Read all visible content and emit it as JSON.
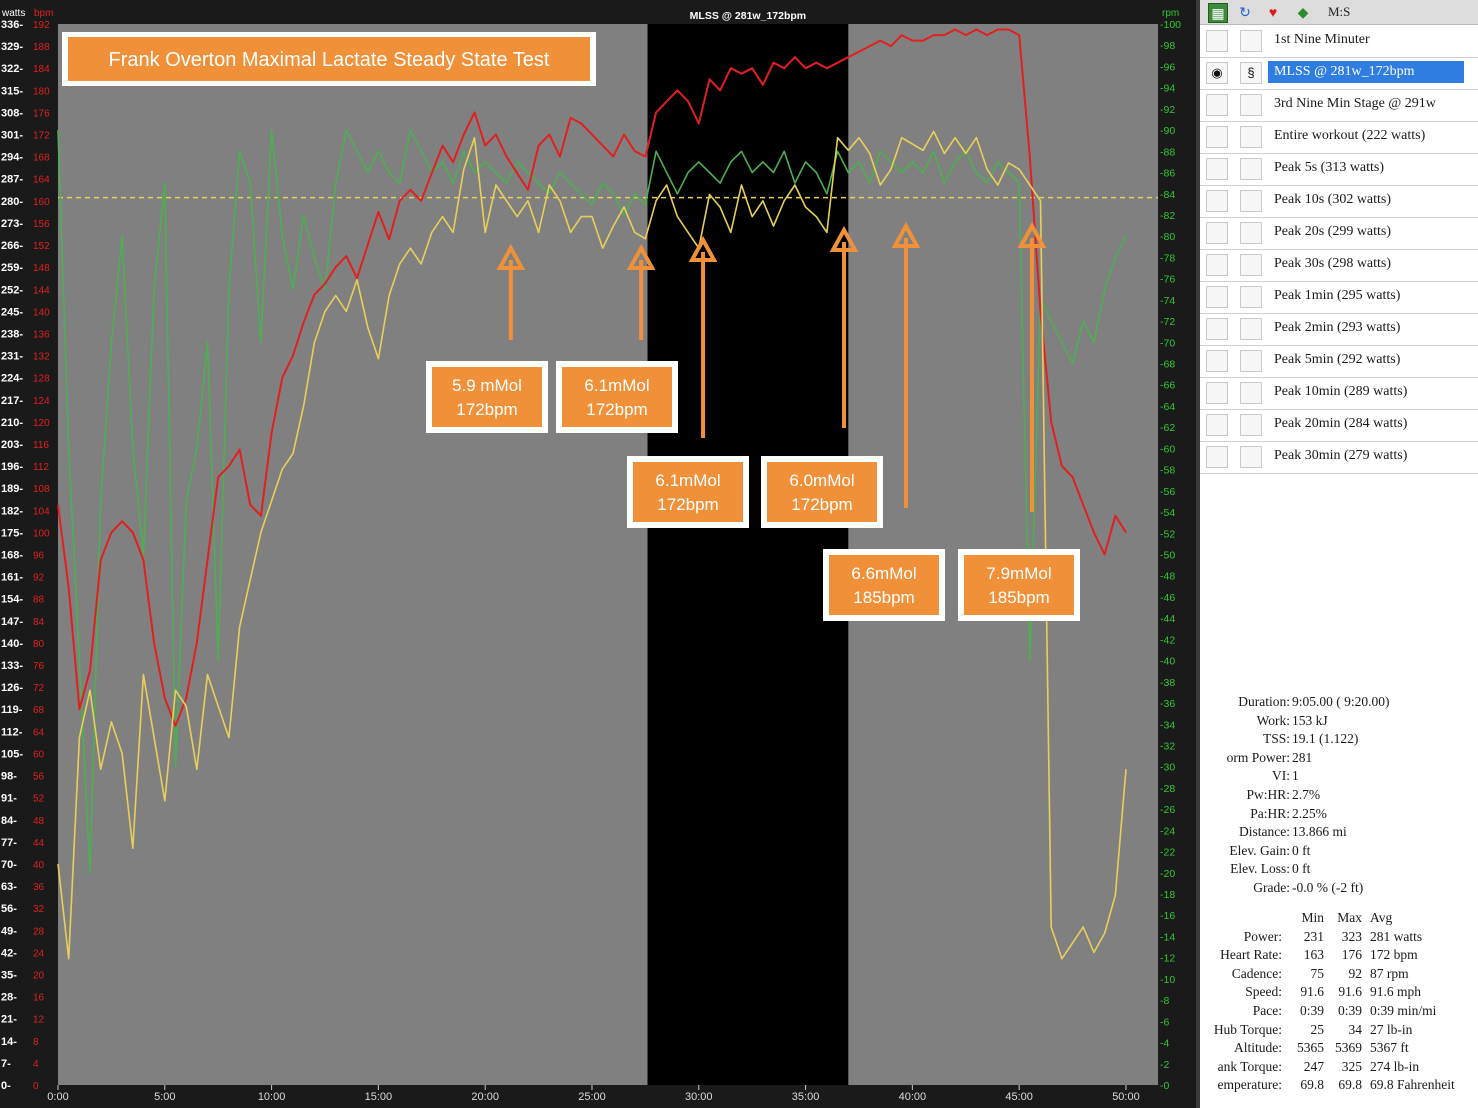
{
  "chart_data": {
    "type": "line",
    "title": "Frank Overton  Maximal Lactate Steady State Test",
    "selection_label": "MLSS @ 281w_172bpm",
    "axes": {
      "watts": {
        "label": "watts",
        "color": "#ffffff",
        "range": [
          0,
          336
        ],
        "ticks": [
          "0-",
          "7-",
          "14-",
          "21-",
          "28-",
          "35-",
          "42-",
          "49-",
          "56-",
          "63-",
          "70-",
          "77-",
          "84-",
          "91-",
          "98-",
          "105-",
          "112-",
          "119-",
          "126-",
          "133-",
          "140-",
          "147-",
          "154-",
          "161-",
          "168-",
          "175-",
          "182-",
          "189-",
          "196-",
          "203-",
          "210-",
          "217-",
          "224-",
          "231-",
          "238-",
          "245-",
          "252-",
          "259-",
          "266-",
          "273-",
          "280-",
          "287-",
          "294-",
          "301-",
          "308-",
          "315-",
          "322-",
          "329-",
          "336-"
        ]
      },
      "bpm": {
        "label": "bpm",
        "color": "#e02020",
        "range": [
          0,
          192
        ],
        "ticks": [
          "0",
          "4",
          "8",
          "12",
          "16",
          "20",
          "24",
          "28",
          "32",
          "36",
          "40",
          "44",
          "48",
          "52",
          "56",
          "60",
          "64",
          "68",
          "72",
          "76",
          "80",
          "84",
          "88",
          "92",
          "96",
          "100",
          "104",
          "108",
          "112",
          "116",
          "120",
          "124",
          "128",
          "132",
          "136",
          "140",
          "144",
          "148",
          "152",
          "156",
          "160",
          "164",
          "168",
          "172",
          "176",
          "180",
          "184",
          "188",
          "192"
        ]
      },
      "rpm": {
        "label": "rpm",
        "color": "#32c832",
        "range": [
          0,
          100
        ],
        "ticks": [
          "-0",
          "-2",
          "-4",
          "-6",
          "-8",
          "-10",
          "-12",
          "-14",
          "-16",
          "-18",
          "-20",
          "-22",
          "-24",
          "-26",
          "-28",
          "-30",
          "-32",
          "-34",
          "-36",
          "-38",
          "-40",
          "-42",
          "-44",
          "-46",
          "-48",
          "-50",
          "-52",
          "-54",
          "-56",
          "-58",
          "-60",
          "-62",
          "-64",
          "-66",
          "-68",
          "-70",
          "-72",
          "-74",
          "-76",
          "-78",
          "-80",
          "-82",
          "-84",
          "-86",
          "-88",
          "-90",
          "-92",
          "-94",
          "-96",
          "-98",
          "-100"
        ]
      },
      "x": {
        "unit": "min",
        "range": [
          0,
          51.5
        ],
        "ticks": [
          "0:00",
          "5:00",
          "10:00",
          "15:00",
          "20:00",
          "25:00",
          "30:00",
          "35:00",
          "40:00",
          "45:00",
          "50:00"
        ]
      }
    },
    "selection_range_min": [
      27.6,
      37.0
    ],
    "reference_line_watts": 281,
    "series": [
      {
        "name": "Power",
        "unit": "watts",
        "color": "#e8cf5a",
        "x": [
          0,
          0.5,
          1,
          1.5,
          2,
          2.5,
          3,
          3.5,
          4,
          4.5,
          5,
          5.5,
          6,
          6.5,
          7,
          7.5,
          8,
          8.5,
          9,
          9.5,
          10,
          10.5,
          11,
          11.5,
          12,
          12.5,
          13,
          13.5,
          14,
          14.5,
          15,
          15.5,
          16,
          16.5,
          17,
          17.5,
          18,
          18.5,
          19,
          19.5,
          20,
          20.5,
          21,
          21.5,
          22,
          22.5,
          23,
          23.5,
          24,
          24.5,
          25,
          25.5,
          26,
          26.5,
          27,
          27.5,
          28,
          28.5,
          29,
          29.5,
          30,
          30.5,
          31,
          31.5,
          32,
          32.5,
          33,
          33.5,
          34,
          34.5,
          35,
          35.5,
          36,
          36.5,
          37,
          37.5,
          38,
          38.5,
          39,
          39.5,
          40,
          40.5,
          41,
          41.5,
          42,
          42.5,
          43,
          43.5,
          44,
          44.5,
          45,
          45.5,
          46,
          46.5,
          47,
          47.5,
          48,
          48.5,
          49,
          49.5,
          50
        ],
        "values": [
          70,
          40,
          110,
          125,
          100,
          115,
          105,
          75,
          130,
          110,
          90,
          125,
          120,
          100,
          130,
          120,
          110,
          145,
          160,
          175,
          185,
          195,
          200,
          215,
          235,
          245,
          250,
          245,
          255,
          240,
          230,
          250,
          260,
          265,
          260,
          270,
          275,
          270,
          290,
          300,
          270,
          285,
          280,
          275,
          280,
          270,
          285,
          280,
          270,
          275,
          275,
          265,
          272,
          278,
          270,
          268,
          280,
          285,
          275,
          270,
          265,
          282,
          278,
          270,
          285,
          275,
          280,
          272,
          280,
          285,
          278,
          275,
          270,
          300,
          296,
          300,
          295,
          285,
          290,
          300,
          298,
          296,
          302,
          295,
          300,
          295,
          300,
          290,
          285,
          292,
          290,
          285,
          280,
          50,
          40,
          45,
          50,
          42,
          48,
          60,
          100
        ]
      },
      {
        "name": "Heart Rate",
        "unit": "bpm",
        "color": "#e02020",
        "x": [
          0,
          0.5,
          1,
          1.5,
          2,
          2.5,
          3,
          3.5,
          4,
          4.5,
          5,
          5.5,
          6,
          6.5,
          7,
          7.5,
          8,
          8.5,
          9,
          9.5,
          10,
          10.5,
          11,
          11.5,
          12,
          12.5,
          13,
          13.5,
          14,
          14.5,
          15,
          15.5,
          16,
          16.5,
          17,
          17.5,
          18,
          18.5,
          19,
          19.5,
          20,
          20.5,
          21,
          21.5,
          22,
          22.5,
          23,
          23.5,
          24,
          24.5,
          25,
          25.5,
          26,
          26.5,
          27,
          27.5,
          28,
          28.5,
          29,
          29.5,
          30,
          30.5,
          31,
          31.5,
          32,
          32.5,
          33,
          33.5,
          34,
          34.5,
          35,
          35.5,
          36,
          36.5,
          37,
          37.5,
          38,
          38.5,
          39,
          39.5,
          40,
          40.5,
          41,
          41.5,
          42,
          42.5,
          43,
          43.5,
          44,
          44.5,
          45,
          45.5,
          46,
          46.5,
          47,
          47.5,
          48,
          48.5,
          49,
          49.5,
          50
        ],
        "values": [
          105,
          90,
          68,
          75,
          95,
          100,
          102,
          100,
          95,
          80,
          70,
          65,
          70,
          80,
          95,
          110,
          112,
          115,
          105,
          103,
          118,
          128,
          132,
          138,
          143,
          145,
          148,
          150,
          146,
          152,
          158,
          153,
          160,
          162,
          160,
          165,
          170,
          167,
          172,
          176,
          170,
          172,
          168,
          165,
          162,
          170,
          172,
          168,
          175,
          174,
          172,
          170,
          168,
          172,
          169,
          168,
          176,
          178,
          180,
          178,
          174,
          182,
          180,
          184,
          183,
          184,
          181,
          185,
          184,
          186,
          184,
          185,
          184,
          185,
          186,
          187,
          188,
          189,
          188,
          190,
          189,
          189,
          190,
          190,
          191,
          190,
          191,
          190,
          191,
          191,
          190,
          168,
          140,
          120,
          112,
          110,
          105,
          100,
          96,
          103,
          100
        ]
      },
      {
        "name": "Cadence",
        "unit": "rpm",
        "color": "#4caf50",
        "x": [
          0,
          0.5,
          1,
          1.5,
          2,
          2.5,
          3,
          3.5,
          4,
          4.5,
          5,
          5.5,
          6,
          6.5,
          7,
          7.5,
          8,
          8.5,
          9,
          9.5,
          10,
          10.5,
          11,
          11.5,
          12,
          12.5,
          13,
          13.5,
          14,
          14.5,
          15,
          15.5,
          16,
          16.5,
          17,
          17.5,
          18,
          18.5,
          19,
          19.5,
          20,
          20.5,
          21,
          21.5,
          22,
          22.5,
          23,
          23.5,
          24,
          24.5,
          25,
          25.5,
          26,
          26.5,
          27,
          27.5,
          28,
          28.5,
          29,
          29.5,
          30,
          30.5,
          31,
          31.5,
          32,
          32.5,
          33,
          33.5,
          34,
          34.5,
          35,
          35.5,
          36,
          36.5,
          37,
          37.5,
          38,
          38.5,
          39,
          39.5,
          40,
          40.5,
          41,
          41.5,
          42,
          42.5,
          43,
          43.5,
          44,
          44.5,
          45,
          45.5,
          46,
          46.5,
          47,
          47.5,
          48,
          48.5,
          49,
          49.5,
          50
        ],
        "values": [
          90,
          60,
          40,
          20,
          55,
          70,
          80,
          60,
          50,
          75,
          85,
          30,
          55,
          60,
          70,
          40,
          75,
          88,
          85,
          70,
          90,
          80,
          75,
          82,
          78,
          75,
          85,
          90,
          88,
          86,
          88,
          86,
          85,
          90,
          88,
          86,
          87,
          85,
          88,
          86,
          87,
          86,
          85,
          87,
          86,
          85,
          84,
          86,
          85,
          84,
          83,
          85,
          84,
          82,
          84,
          83,
          88,
          86,
          84,
          86,
          87,
          86,
          85,
          87,
          88,
          86,
          87,
          86,
          88,
          85,
          87,
          86,
          84,
          88,
          86,
          87,
          85,
          88,
          87,
          86,
          87,
          86,
          88,
          85,
          87,
          88,
          86,
          85,
          87,
          86,
          85,
          40,
          74,
          72,
          70,
          68,
          72,
          70,
          75,
          78,
          80
        ]
      }
    ],
    "annotations": [
      {
        "lactate": "5.9 mMol",
        "hr": "172bpm",
        "at_min": 21.2
      },
      {
        "lactate": "6.1mMol",
        "hr": "172bpm",
        "at_min": 27.3
      },
      {
        "lactate": "6.1mMol",
        "hr": "172bpm",
        "at_min": 30.2
      },
      {
        "lactate": "6.0mMol",
        "hr": "172bpm",
        "at_min": 36.8
      },
      {
        "lactate": "6.6mMol",
        "hr": "185bpm",
        "at_min": 39.7
      },
      {
        "lactate": "7.9mMol",
        "hr": "185bpm",
        "at_min": 45.6
      }
    ]
  },
  "toolbar": {
    "label": "M:S",
    "icons": [
      "chart-icon",
      "refresh-icon",
      "heart-icon",
      "shield-icon"
    ]
  },
  "ranges": [
    {
      "label": "1st Nine Minuter",
      "selected": false
    },
    {
      "label": "MLSS @ 281w_172bpm",
      "selected": true
    },
    {
      "label": "3rd Nine Min Stage @ 291w",
      "selected": false
    },
    {
      "label": "Entire workout (222 watts)",
      "selected": false
    },
    {
      "label": "Peak 5s (313 watts)",
      "selected": false
    },
    {
      "label": "Peak 10s (302 watts)",
      "selected": false
    },
    {
      "label": "Peak 20s (299 watts)",
      "selected": false
    },
    {
      "label": "Peak 30s (298 watts)",
      "selected": false
    },
    {
      "label": "Peak 1min (295 watts)",
      "selected": false
    },
    {
      "label": "Peak 2min (293 watts)",
      "selected": false
    },
    {
      "label": "Peak 5min (292 watts)",
      "selected": false
    },
    {
      "label": "Peak 10min (289 watts)",
      "selected": false
    },
    {
      "label": "Peak 20min (284 watts)",
      "selected": false
    },
    {
      "label": "Peak 30min (279 watts)",
      "selected": false
    }
  ],
  "stats": [
    {
      "label": "Duration:",
      "value": "9:05.00 ( 9:20.00)"
    },
    {
      "label": "Work:",
      "value": "153 kJ"
    },
    {
      "label": "TSS:",
      "value": "19.1 (1.122)"
    },
    {
      "label": "orm Power:",
      "value": "281"
    },
    {
      "label": "VI:",
      "value": "1"
    },
    {
      "label": "Pw:HR:",
      "value": "2.7%"
    },
    {
      "label": "Pa:HR:",
      "value": "2.25%"
    },
    {
      "label": "Distance:",
      "value": "13.866 mi"
    },
    {
      "label": "Elev. Gain:",
      "value": "0 ft"
    },
    {
      "label": "Elev. Loss:",
      "value": "0 ft"
    },
    {
      "label": "Grade:",
      "value": "-0.0 %  (-2 ft)"
    }
  ],
  "metrics_header": {
    "min": "Min",
    "max": "Max",
    "avg": "Avg"
  },
  "metrics": [
    {
      "label": "Power:",
      "min": "231",
      "max": "323",
      "avg": "281 watts"
    },
    {
      "label": "Heart Rate:",
      "min": "163",
      "max": "176",
      "avg": "172 bpm"
    },
    {
      "label": "Cadence:",
      "min": "75",
      "max": "92",
      "avg": "87 rpm"
    },
    {
      "label": "Speed:",
      "min": "91.6",
      "max": "91.6",
      "avg": "91.6 mph"
    },
    {
      "label": "Pace:",
      "min": "0:39",
      "max": "0:39",
      "avg": "0:39 min/mi"
    },
    {
      "label": "Hub Torque:",
      "min": "25",
      "max": "34",
      "avg": "27 lb-in"
    },
    {
      "label": "Altitude:",
      "min": "5365",
      "max": "5369",
      "avg": "5367 ft"
    },
    {
      "label": "ank Torque:",
      "min": "247",
      "max": "325",
      "avg": "274 lb-in"
    },
    {
      "label": "emperature:",
      "min": "69.8",
      "max": "69.8",
      "avg": "69.8 Fahrenheit"
    }
  ]
}
